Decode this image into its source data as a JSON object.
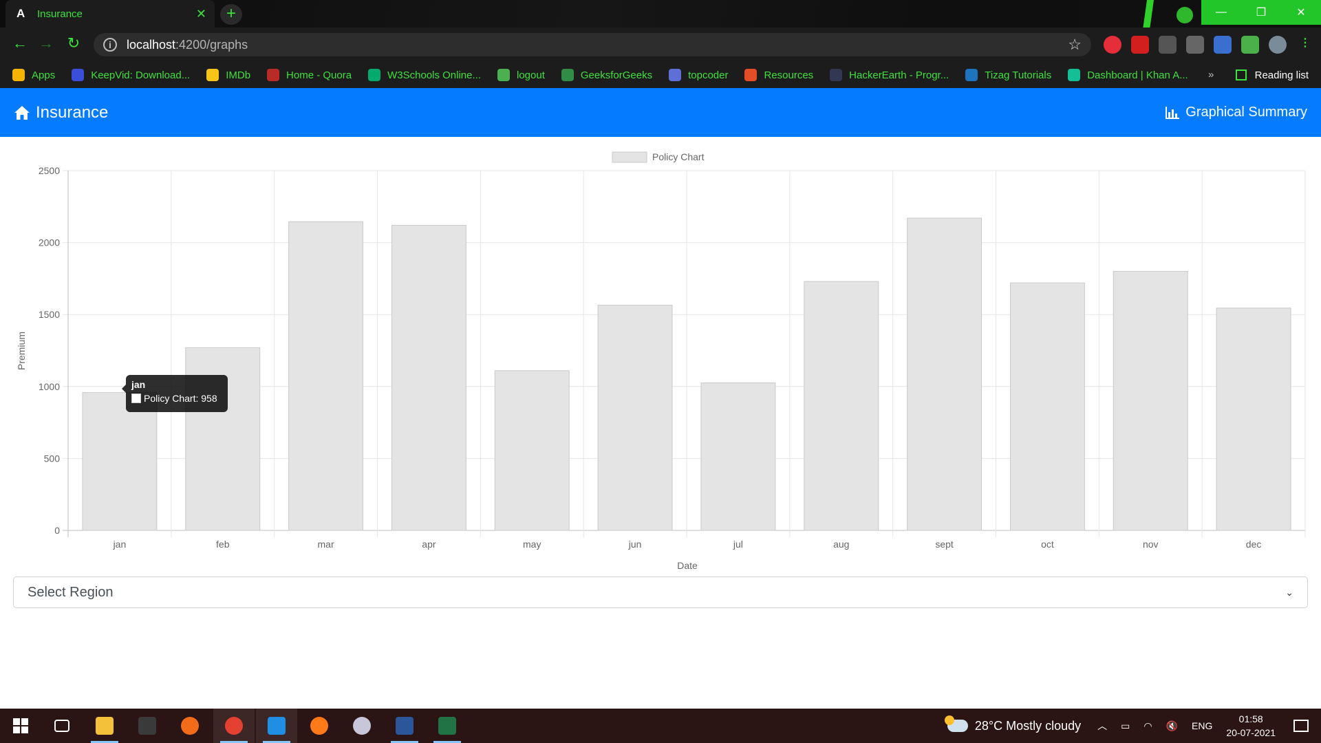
{
  "browser": {
    "tab_title": "Insurance",
    "tab_close": "✕",
    "new_tab": "+",
    "url_host": "localhost",
    "url_path": ":4200/graphs",
    "bookmarks": [
      {
        "label": "Apps",
        "color": "#f4b400"
      },
      {
        "label": "KeepVid: Download...",
        "color": "#3b4ed8"
      },
      {
        "label": "IMDb",
        "color": "#f5c518"
      },
      {
        "label": "Home - Quora",
        "color": "#b92b27"
      },
      {
        "label": "W3Schools Online...",
        "color": "#04aa6d"
      },
      {
        "label": "logout",
        "color": "#4caf50"
      },
      {
        "label": "GeeksforGeeks",
        "color": "#2f8d46"
      },
      {
        "label": "topcoder",
        "color": "#5f6fd8"
      },
      {
        "label": "Resources",
        "color": "#e44d26"
      },
      {
        "label": "HackerEarth - Progr...",
        "color": "#323754"
      },
      {
        "label": "Tizag Tutorials",
        "color": "#1e73be"
      },
      {
        "label": "Dashboard | Khan A...",
        "color": "#14bf96"
      }
    ],
    "bookmarks_more": "»",
    "reading_list": "Reading list"
  },
  "app": {
    "brand": "Insurance",
    "nav_link": "Graphical Summary",
    "select_placeholder": "Select Region"
  },
  "chart_data": {
    "type": "bar",
    "legend": "Policy Chart",
    "legend_placement": "top",
    "series": [
      {
        "name": "Policy Chart",
        "values": [
          958,
          1270,
          2145,
          2120,
          1110,
          1565,
          1025,
          1730,
          2170,
          1720,
          1800,
          1545
        ]
      }
    ],
    "categories": [
      "jan",
      "feb",
      "mar",
      "apr",
      "may",
      "jun",
      "jul",
      "aug",
      "sept",
      "oct",
      "nov",
      "dec"
    ],
    "ylabel": "Premium",
    "xlabel": "Date",
    "ylim": [
      0,
      2500
    ],
    "yticks": [
      0,
      500,
      1000,
      1500,
      2000,
      2500
    ],
    "grid": true,
    "bar_color": "#e4e4e4",
    "bar_border": "#c9c9c9",
    "tooltip": {
      "title": "jan",
      "text": "Policy Chart: 958"
    }
  },
  "taskbar": {
    "weather": "28°C  Mostly cloudy",
    "lang": "ENG",
    "time": "01:58",
    "date": "20-07-2021"
  }
}
